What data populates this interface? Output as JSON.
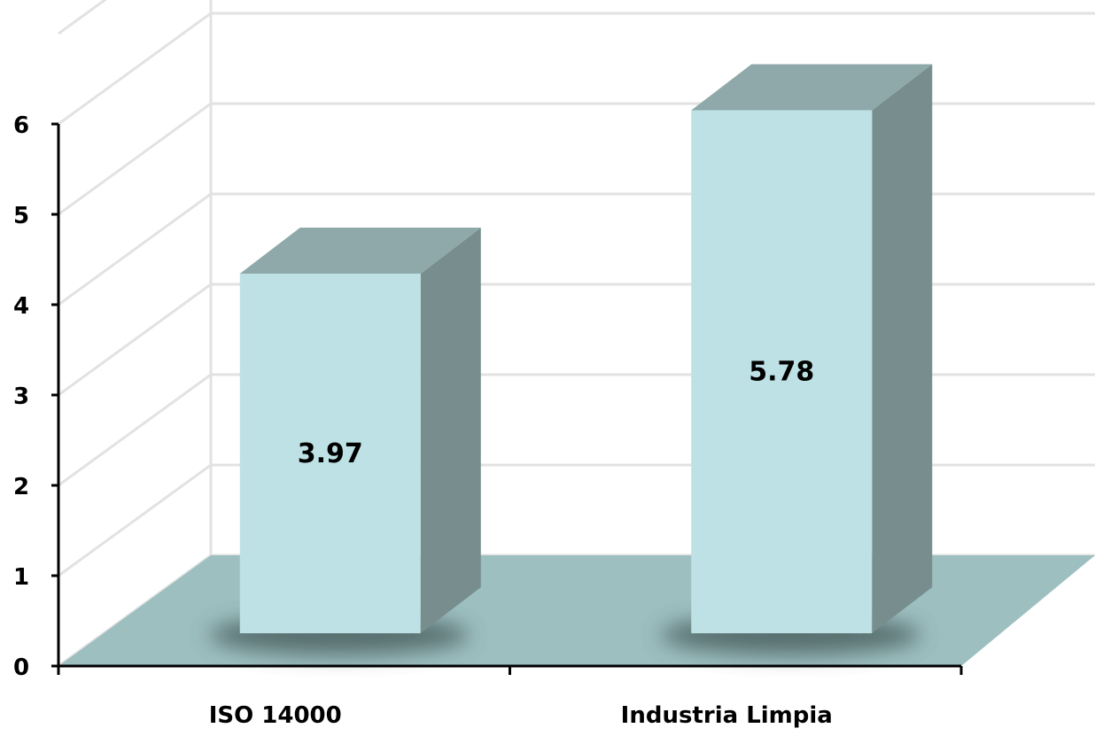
{
  "chart_data": {
    "type": "bar",
    "style": "3d-column",
    "categories": [
      "ISO 14000",
      "Industria Limpia"
    ],
    "values": [
      3.97,
      5.78
    ],
    "data_labels": [
      "3.97",
      "5.78"
    ],
    "title": "",
    "xlabel": "",
    "ylabel": "",
    "ylim": [
      0,
      6
    ],
    "y_ticks": [
      "0",
      "1",
      "2",
      "3",
      "4",
      "5",
      "6"
    ],
    "grid": true,
    "legend": "none",
    "colors": {
      "bar_front": "#bde1e4",
      "bar_top": "#8fa9ab",
      "bar_side": "#778d8e",
      "floor": "#9dbfc0",
      "gridline": "#e2e2e2",
      "axis": "#000000"
    }
  }
}
